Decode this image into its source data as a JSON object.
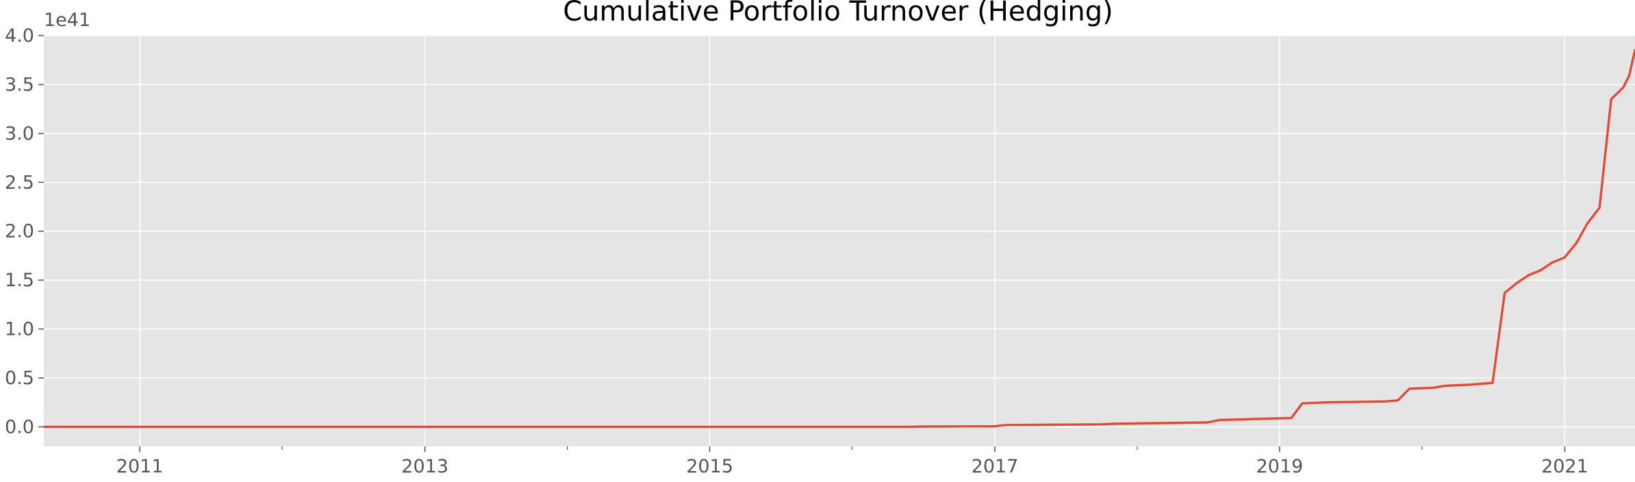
{
  "colors": {
    "plot_background": "#e5e5e5",
    "grid": "#ffffff",
    "line": "#e24a33",
    "axis_text": "#555555",
    "title_text": "#000000"
  },
  "chart_data": {
    "type": "line",
    "title": "Cumulative Portfolio Turnover (Hedging)",
    "xlabel": "",
    "ylabel": "",
    "y_offset_label": "1e41",
    "grid": true,
    "xlim": [
      "2010-04-30",
      "2021-06-30"
    ],
    "ylim": [
      -0.2,
      4.0
    ],
    "x_ticks": [
      {
        "date": "2011-01-01",
        "label": "2011"
      },
      {
        "date": "2013-01-01",
        "label": "2013"
      },
      {
        "date": "2015-01-01",
        "label": "2015"
      },
      {
        "date": "2017-01-01",
        "label": "2017"
      },
      {
        "date": "2019-01-01",
        "label": "2019"
      },
      {
        "date": "2021-01-01",
        "label": "2021"
      }
    ],
    "x_minor_ticks": [
      "2012-01-01",
      "2014-01-01",
      "2016-01-01",
      "2018-01-01",
      "2020-01-01"
    ],
    "y_ticks": [
      {
        "value": 0.0,
        "label": "0.0"
      },
      {
        "value": 0.5,
        "label": "0.5"
      },
      {
        "value": 1.0,
        "label": "1.0"
      },
      {
        "value": 1.5,
        "label": "1.5"
      },
      {
        "value": 2.0,
        "label": "2.0"
      },
      {
        "value": 2.5,
        "label": "2.5"
      },
      {
        "value": 3.0,
        "label": "3.0"
      },
      {
        "value": 3.5,
        "label": "3.5"
      },
      {
        "value": 4.0,
        "label": "4.0"
      }
    ],
    "series": [
      {
        "points": [
          [
            "2010-04-30",
            0.0
          ],
          [
            "2016-05-31",
            0.0
          ],
          [
            "2016-06-30",
            0.003
          ],
          [
            "2016-12-31",
            0.006
          ],
          [
            "2017-01-31",
            0.018
          ],
          [
            "2017-09-30",
            0.025
          ],
          [
            "2017-10-31",
            0.031
          ],
          [
            "2018-06-30",
            0.045
          ],
          [
            "2018-07-31",
            0.07
          ],
          [
            "2018-10-31",
            0.08
          ],
          [
            "2019-01-31",
            0.09
          ],
          [
            "2019-02-28",
            0.24
          ],
          [
            "2019-04-30",
            0.25
          ],
          [
            "2019-09-30",
            0.26
          ],
          [
            "2019-10-31",
            0.27
          ],
          [
            "2019-11-30",
            0.39
          ],
          [
            "2020-01-31",
            0.4
          ],
          [
            "2020-02-29",
            0.42
          ],
          [
            "2020-04-30",
            0.43
          ],
          [
            "2020-06-30",
            0.45
          ],
          [
            "2020-07-31",
            1.37
          ],
          [
            "2020-08-31",
            1.47
          ],
          [
            "2020-09-30",
            1.55
          ],
          [
            "2020-10-31",
            1.6
          ],
          [
            "2020-11-30",
            1.68
          ],
          [
            "2020-12-31",
            1.73
          ],
          [
            "2021-01-31",
            1.88
          ],
          [
            "2021-02-28",
            2.08
          ],
          [
            "2021-03-31",
            2.24
          ],
          [
            "2021-04-30",
            3.35
          ],
          [
            "2021-05-31",
            3.47
          ],
          [
            "2021-06-15",
            3.59
          ],
          [
            "2021-06-30",
            3.85
          ]
        ]
      }
    ]
  }
}
